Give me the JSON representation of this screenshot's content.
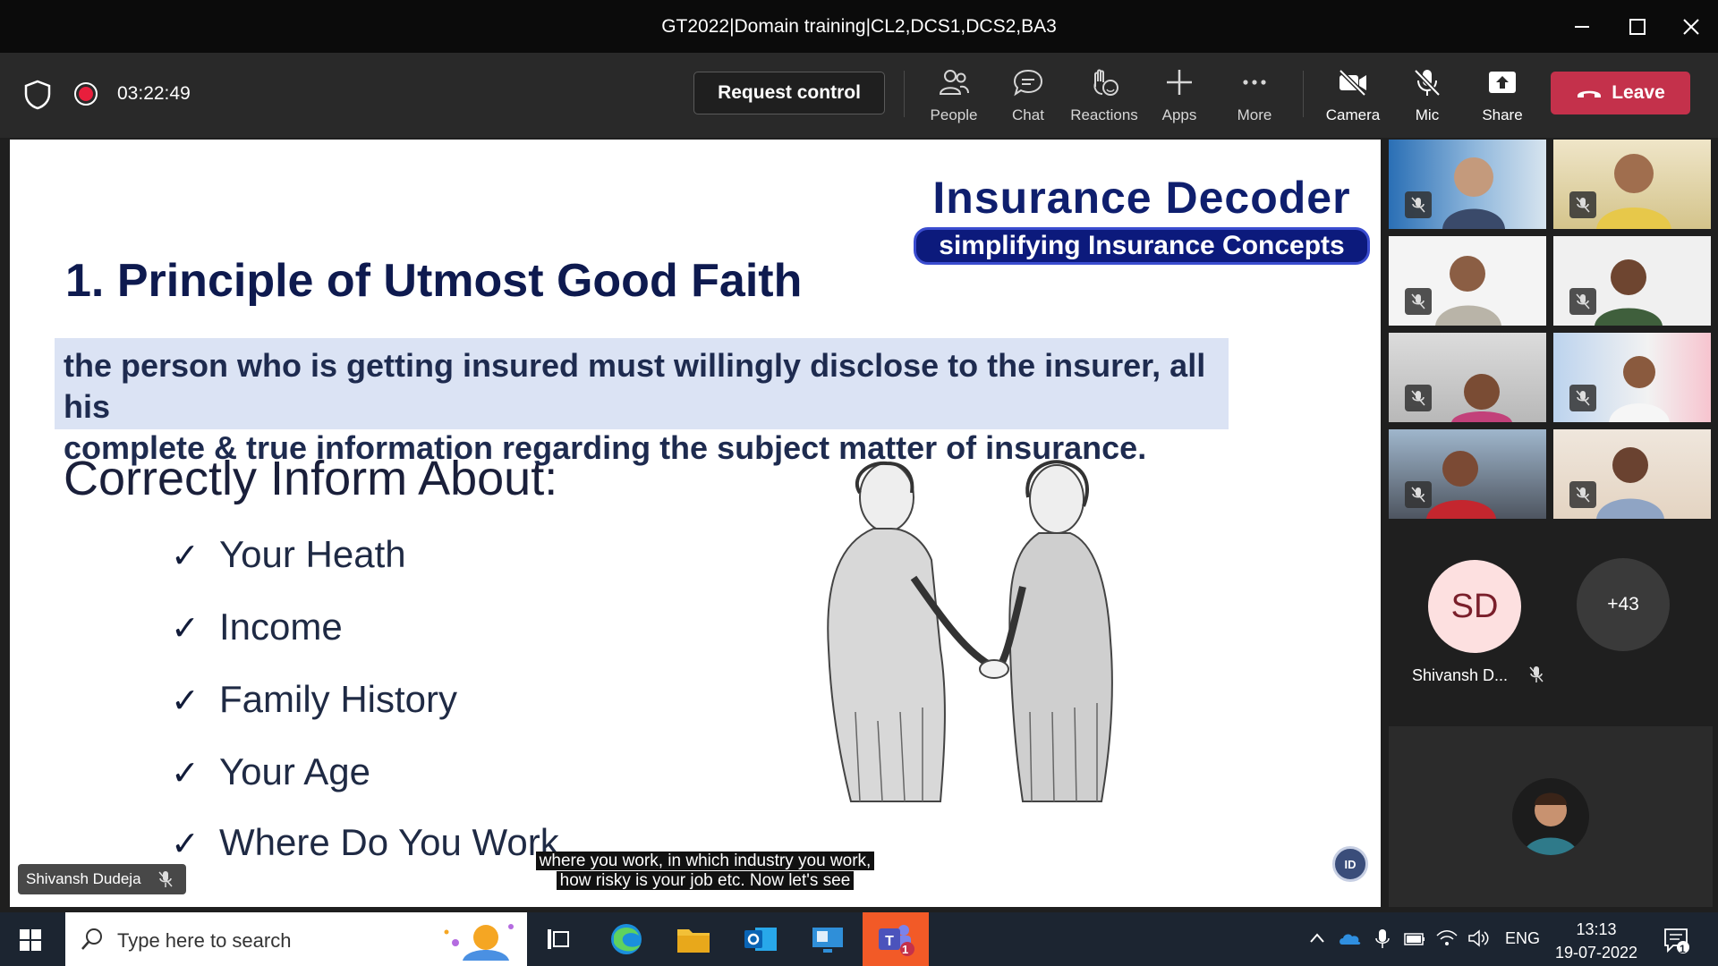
{
  "window": {
    "title": "GT2022|Domain training|CL2,DCS1,DCS2,BA3"
  },
  "toolbar": {
    "timer": "03:22:49",
    "request_control": "Request control",
    "buttons": [
      {
        "label": "People",
        "icon": "people-icon"
      },
      {
        "label": "Chat",
        "icon": "chat-icon"
      },
      {
        "label": "Reactions",
        "icon": "reactions-icon"
      },
      {
        "label": "Apps",
        "icon": "apps-icon"
      },
      {
        "label": "More",
        "icon": "more-icon"
      },
      {
        "label": "Camera",
        "icon": "camera-off-icon"
      },
      {
        "label": "Mic",
        "icon": "mic-off-icon"
      },
      {
        "label": "Share",
        "icon": "share-icon"
      }
    ],
    "leave": "Leave",
    "leave_color": "#c4314b"
  },
  "slide": {
    "brand_title": "Insurance Decoder",
    "brand_subtitle": "simplifying Insurance Concepts",
    "title": "1. Principle of Utmost Good Faith",
    "principle_line1": "the person who is getting insured must willingly disclose to the insurer, all his",
    "principle_line2": "complete & true information regarding the subject matter of insurance.",
    "inform_heading": "Correctly Inform About:",
    "items": [
      "Your Heath",
      "Income",
      "Family History",
      "Your Age",
      "Where Do You Work"
    ],
    "logo_text": "ID"
  },
  "caption": {
    "line1": "where you work, in which industry you work,",
    "line2": "how risky is your job etc. Now let's see"
  },
  "presenter_tag": "Shivansh Dudeja",
  "participants": {
    "sd_initials": "SD",
    "sd_name": "Shivansh D...",
    "overflow_count": "+43"
  },
  "taskbar": {
    "search_placeholder": "Type here to search",
    "teams_badge": "1",
    "language": "ENG",
    "time": "13:13",
    "date": "19-07-2022",
    "notification_badge": "1"
  }
}
